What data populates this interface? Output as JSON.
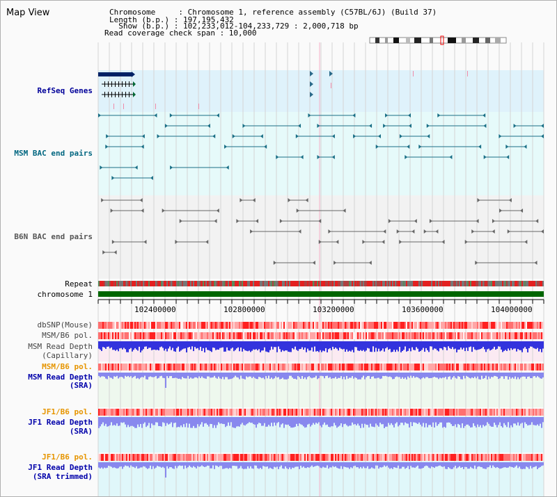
{
  "header": {
    "title": "Map View",
    "info_lines": [
      "Chromosome     : Chromosome 1, reference assembly (C57BL/6J) (Build 37)",
      "Length (b.p.) : 197,195,432",
      "  Show (b.p.) : 102,233,012-104,233,729 : 2,000,718 bp",
      "Read coverage check span : 10,000"
    ]
  },
  "tracks": {
    "refseq": {
      "label": "RefSeq Genes",
      "color": "#000099"
    },
    "msm_bac": {
      "label": "MSM BAC end pairs",
      "color": "#006680"
    },
    "b6n_bac": {
      "label": "B6N BAC end pairs",
      "color": "#555555"
    },
    "repeat": {
      "label": "Repeat"
    },
    "chromosome": {
      "label": "chromosome 1"
    },
    "dbsnp": {
      "label": "dbSNP(Mouse)"
    },
    "msm_b6_pol_1": {
      "label": "MSM/B6 pol."
    },
    "msm_depth_cap": {
      "label_line1": "MSM Read Depth",
      "label_line2": "(Capillary)"
    },
    "msm_b6_pol_2": {
      "label": "MSM/B6 pol.",
      "color": "#e69500"
    },
    "msm_depth_sra": {
      "label_line1": "MSM Read Depth",
      "label_line2": "(SRA)",
      "color": "#0000aa"
    },
    "jf1_b6_pol_1": {
      "label": "JF1/B6 pol.",
      "color": "#e69500"
    },
    "jf1_depth_sra": {
      "label_line1": "JF1 Read Depth",
      "label_line2": "(SRA)",
      "color": "#0000aa"
    },
    "jf1_b6_pol_2": {
      "label": "JF1/B6 pol.",
      "color": "#e69500"
    },
    "jf1_depth_trim": {
      "label_line1": "JF1 Read Depth",
      "label_line2": "(SRA trimmed)",
      "color": "#0000aa"
    }
  },
  "axis": {
    "ticks": [
      "102400000",
      "102800000",
      "103200000",
      "103600000",
      "104000000"
    ]
  },
  "colors": {
    "refseq_bg": "#dff2fb",
    "msm_bg": "#e6fafa",
    "b6n_bg": "#f2f2f2",
    "chromosome_bar": "#006600",
    "snp_red": "#ff2020",
    "depth_blue": "#3333dd",
    "depth_light_blue": "#8888ee"
  }
}
